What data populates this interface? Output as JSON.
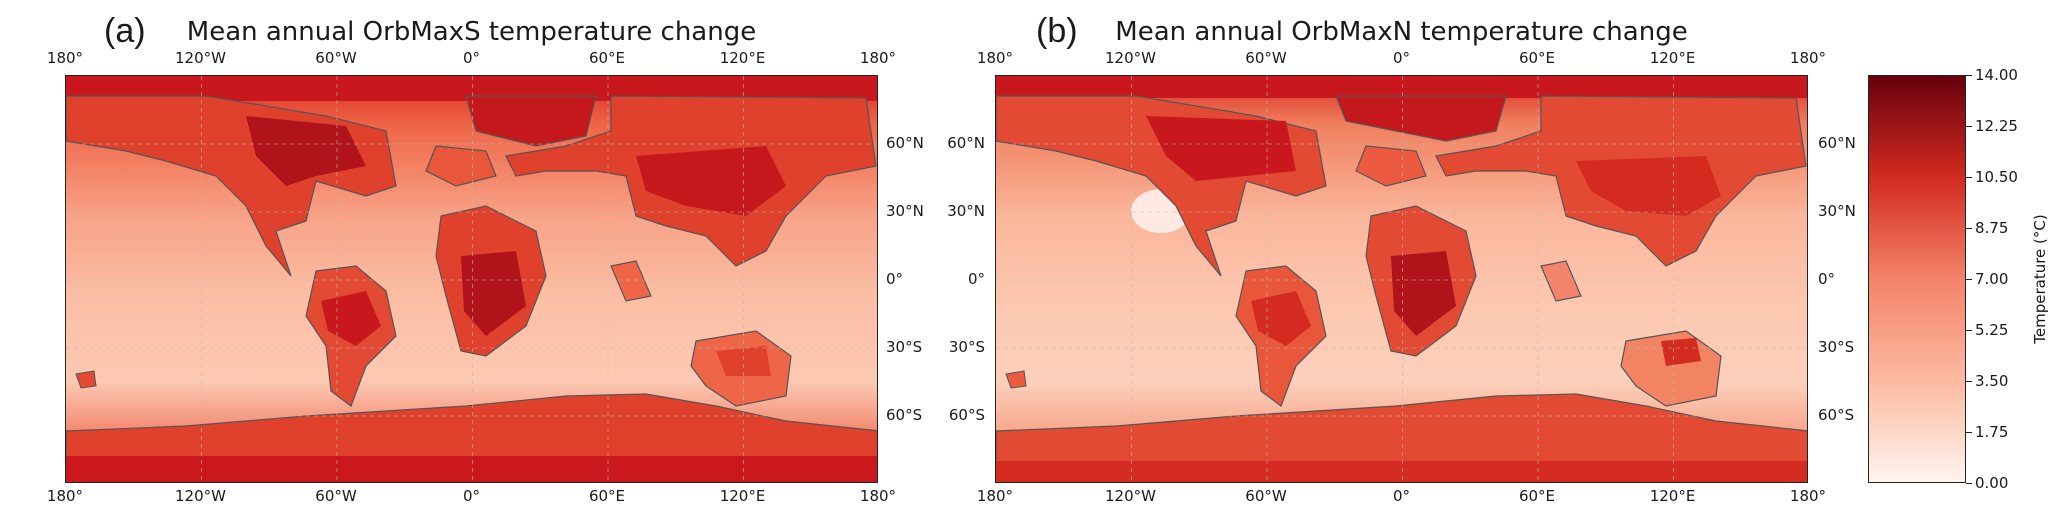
{
  "panels": [
    {
      "letter": "(a)",
      "title": "Mean annual OrbMaxS temperature change"
    },
    {
      "letter": "(b)",
      "title": "Mean annual OrbMaxN temperature change"
    }
  ],
  "axes": {
    "lon_ticks": [
      "180°",
      "120°W",
      "60°W",
      "0°",
      "60°E",
      "120°E",
      "180°"
    ],
    "lat_ticks": [
      "60°N",
      "30°N",
      "0°",
      "30°S",
      "60°S"
    ]
  },
  "colorbar": {
    "label": "Temperature (°C)",
    "min": 0.0,
    "max": 14.0,
    "ticks": [
      "14.00",
      "12.25",
      "10.50",
      "8.75",
      "7.00",
      "5.25",
      "3.50",
      "1.75",
      "0.00"
    ],
    "colors": {
      "low": "#fff5f0",
      "mid": "#f4836b",
      "high": "#67000d"
    }
  }
}
